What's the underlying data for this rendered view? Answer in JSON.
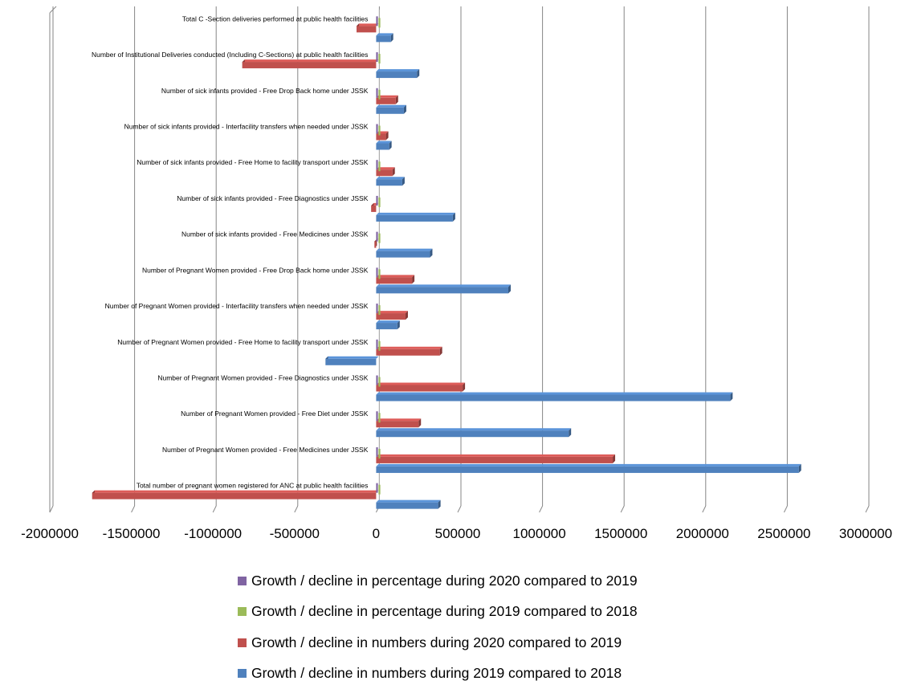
{
  "chart_data": {
    "type": "bar",
    "orientation": "horizontal",
    "three_d": true,
    "grid": true,
    "legend_position": "bottom",
    "categories": [
      "Total number of pregnant women registered for ANC at public health facilities",
      "Number of Pregnant Women provided - Free Medicines under JSSK",
      "Number of Pregnant Women provided - Free Diet under JSSK",
      "Number of Pregnant Women provided - Free Diagnostics under JSSK",
      "Number of Pregnant Women provided - Free Home to facility transport under JSSK",
      "Number of Pregnant Women provided - Interfacility transfers when needed under JSSK",
      "Number of Pregnant Women provided - Free Drop Back home under JSSK",
      "Number of sick infants provided - Free Medicines under JSSK",
      "Number of sick infants provided - Free Diagnostics under JSSK",
      "Number of sick infants provided - Free Home to facility transport under JSSK",
      "Number of sick infants provided - Interfacility transfers when needed under JSSK",
      "Number of sick infants provided - Free Drop Back home under JSSK",
      "Number of Institutional Deliveries conducted (Including C-Sections) at public health facilities",
      "Total C -Section deliveries performed  at public health facilities"
    ],
    "series": [
      {
        "name": "Growth / decline in numbers during 2019 compared to 2018",
        "color": "#4F81BD",
        "values": [
          380000,
          2590000,
          1180000,
          2170000,
          -310000,
          130000,
          810000,
          330000,
          470000,
          160000,
          80000,
          170000,
          250000,
          90000
        ]
      },
      {
        "name": "Growth / decline in numbers during 2020 compared to 2019",
        "color": "#C0504D",
        "values": [
          -1740000,
          1450000,
          260000,
          530000,
          390000,
          180000,
          220000,
          -10000,
          -30000,
          100000,
          60000,
          120000,
          -820000,
          -120000
        ]
      },
      {
        "name": "Growth / decline in percentage during 2019 compared to 2018",
        "color": "#9BBB59",
        "values": [
          0,
          0,
          0,
          0,
          0,
          0,
          0,
          0,
          0,
          0,
          0,
          0,
          0,
          0
        ]
      },
      {
        "name": "Growth / decline in percentage during 2020 compared to 2019",
        "color": "#8064A2",
        "values": [
          0,
          0,
          0,
          0,
          0,
          0,
          0,
          0,
          0,
          0,
          0,
          0,
          0,
          0
        ]
      }
    ],
    "xlim": [
      -2000000,
      3000000
    ],
    "x_ticks": [
      -2000000,
      -1500000,
      -1000000,
      -500000,
      0,
      500000,
      1000000,
      1500000,
      2000000,
      2500000,
      3000000
    ],
    "x_tick_labels": [
      "-2000000",
      "-1500000",
      "-1000000",
      "-500000",
      "0",
      "500000",
      "1000000",
      "1500000",
      "2000000",
      "2500000",
      "3000000"
    ],
    "legend_order": [
      3,
      2,
      1,
      0
    ]
  }
}
